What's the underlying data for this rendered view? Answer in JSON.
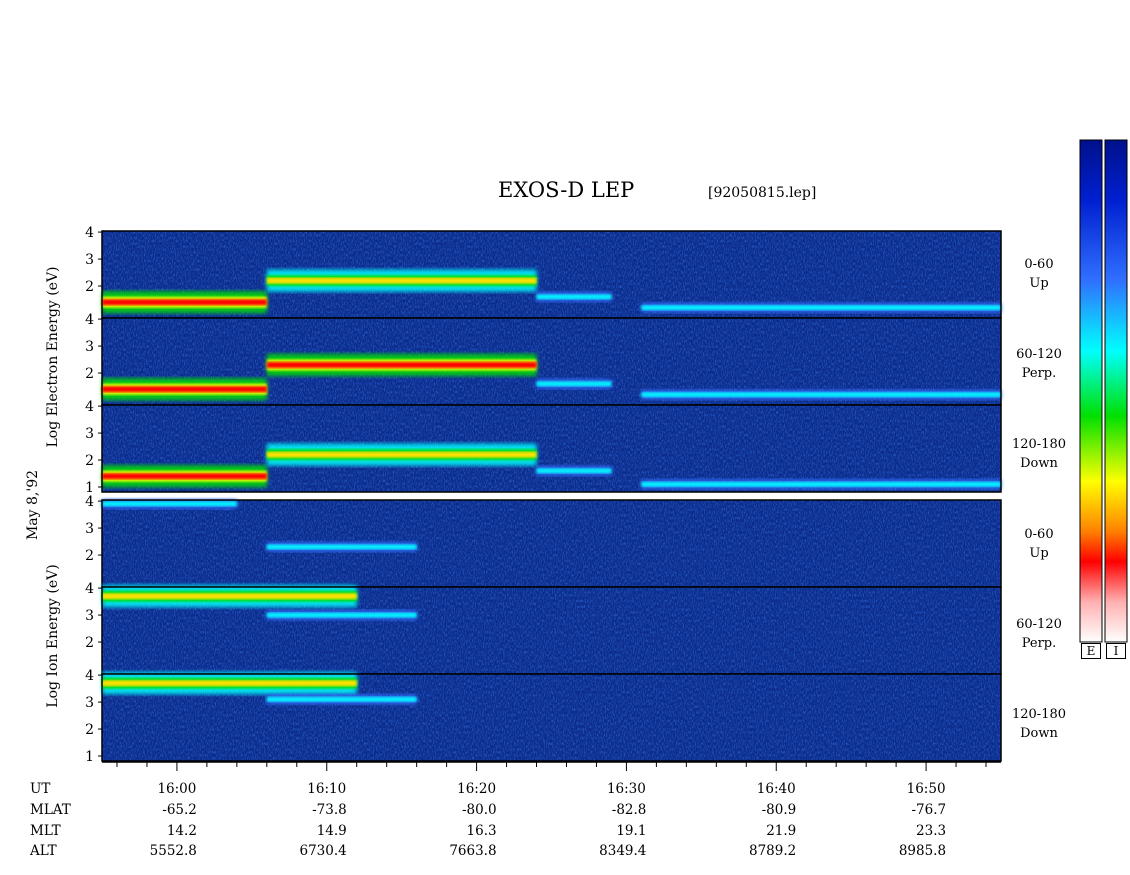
{
  "header": {
    "title": "EXOS-D LEP",
    "file": "[92050815.lep]"
  },
  "axes": {
    "date_label": "May 8,'92",
    "electron_ylabel": "Log Electron Energy (eV)",
    "ion_ylabel": "Log Ion Energy (eV)",
    "ytick_labels": [
      "4",
      "3",
      "2"
    ],
    "ytick_labels_low": [
      "4",
      "3",
      "2",
      "1"
    ]
  },
  "panels": [
    {
      "species": "Electron",
      "pitch": "0-60",
      "dir": "Up"
    },
    {
      "species": "Electron",
      "pitch": "60-120",
      "dir": "Perp."
    },
    {
      "species": "Electron",
      "pitch": "120-180",
      "dir": "Down"
    },
    {
      "species": "Ion",
      "pitch": "0-60",
      "dir": "Up"
    },
    {
      "species": "Ion",
      "pitch": "60-120",
      "dir": "Perp."
    },
    {
      "species": "Ion",
      "pitch": "120-180",
      "dir": "Down"
    }
  ],
  "colorbars": {
    "electron_label": "E",
    "ion_label": "I"
  },
  "colors": {
    "background": "#0c2c8c",
    "scale": [
      "#ffffff",
      "#ffb0b0",
      "#ff0000",
      "#ff8000",
      "#ffff00",
      "#00e000",
      "#00ffff",
      "#3070ff",
      "#0020d0",
      "#00108c"
    ]
  },
  "bottom_table": {
    "row_labels": [
      "UT",
      "MLAT",
      "MLT",
      "ALT"
    ],
    "columns": [
      {
        "UT": "16:00",
        "MLAT": "-65.2",
        "MLT": "14.2",
        "ALT": "5552.8"
      },
      {
        "UT": "16:10",
        "MLAT": "-73.8",
        "MLT": "14.9",
        "ALT": "6730.4"
      },
      {
        "UT": "16:20",
        "MLAT": "-80.0",
        "MLT": "16.3",
        "ALT": "7663.8"
      },
      {
        "UT": "16:30",
        "MLAT": "-82.8",
        "MLT": "19.1",
        "ALT": "8349.4"
      },
      {
        "UT": "16:40",
        "MLAT": "-80.9",
        "MLT": "21.9",
        "ALT": "8789.2"
      },
      {
        "UT": "16:50",
        "MLAT": "-76.7",
        "MLT": "23.3",
        "ALT": "8985.8"
      }
    ]
  },
  "chart_data": {
    "type": "heatmap",
    "title": "EXOS-D LEP",
    "x_unit": "UT",
    "xlim": [
      "15:55",
      "16:55"
    ],
    "ylim": [
      1,
      4
    ],
    "yscale": "log energy (eV)",
    "x_ticks": [
      "16:00",
      "16:10",
      "16:20",
      "16:30",
      "16:40",
      "16:50"
    ],
    "series": [
      {
        "name": "Electron 0-60 Up",
        "features": [
          {
            "t_start": "15:55",
            "t_end": "16:06",
            "log_energy": 1.4,
            "level": "high"
          },
          {
            "t_start": "16:06",
            "t_end": "16:24",
            "log_energy": 2.2,
            "level": "medium"
          },
          {
            "t_start": "16:24",
            "t_end": "16:29",
            "log_energy": 1.6,
            "level": "low"
          },
          {
            "t_start": "16:31",
            "t_end": "16:55",
            "log_energy": 1.2,
            "level": "low"
          }
        ]
      },
      {
        "name": "Electron 60-120 Perp.",
        "features": [
          {
            "t_start": "15:55",
            "t_end": "16:06",
            "log_energy": 1.4,
            "level": "high"
          },
          {
            "t_start": "16:06",
            "t_end": "16:24",
            "log_energy": 2.3,
            "level": "high"
          },
          {
            "t_start": "16:24",
            "t_end": "16:29",
            "log_energy": 1.6,
            "level": "low"
          },
          {
            "t_start": "16:31",
            "t_end": "16:55",
            "log_energy": 1.2,
            "level": "low"
          }
        ]
      },
      {
        "name": "Electron 120-180 Down",
        "features": [
          {
            "t_start": "15:55",
            "t_end": "16:06",
            "log_energy": 1.4,
            "level": "high"
          },
          {
            "t_start": "16:06",
            "t_end": "16:24",
            "log_energy": 2.2,
            "level": "medium"
          },
          {
            "t_start": "16:24",
            "t_end": "16:29",
            "log_energy": 1.6,
            "level": "low"
          },
          {
            "t_start": "16:31",
            "t_end": "16:55",
            "log_energy": 1.1,
            "level": "low"
          }
        ]
      },
      {
        "name": "Ion 0-60 Up",
        "features": [
          {
            "t_start": "15:55",
            "t_end": "16:04",
            "log_energy": 3.9,
            "level": "low"
          },
          {
            "t_start": "16:06",
            "t_end": "16:16",
            "log_energy": 2.3,
            "level": "low"
          }
        ]
      },
      {
        "name": "Ion 60-120 Perp.",
        "features": [
          {
            "t_start": "15:55",
            "t_end": "16:12",
            "log_energy": 3.7,
            "level": "medium"
          },
          {
            "t_start": "16:06",
            "t_end": "16:16",
            "log_energy": 3.0,
            "level": "low"
          }
        ]
      },
      {
        "name": "Ion 120-180 Down",
        "features": [
          {
            "t_start": "15:55",
            "t_end": "16:12",
            "log_energy": 3.7,
            "level": "medium"
          },
          {
            "t_start": "16:06",
            "t_end": "16:16",
            "log_energy": 3.1,
            "level": "low"
          }
        ]
      }
    ]
  }
}
